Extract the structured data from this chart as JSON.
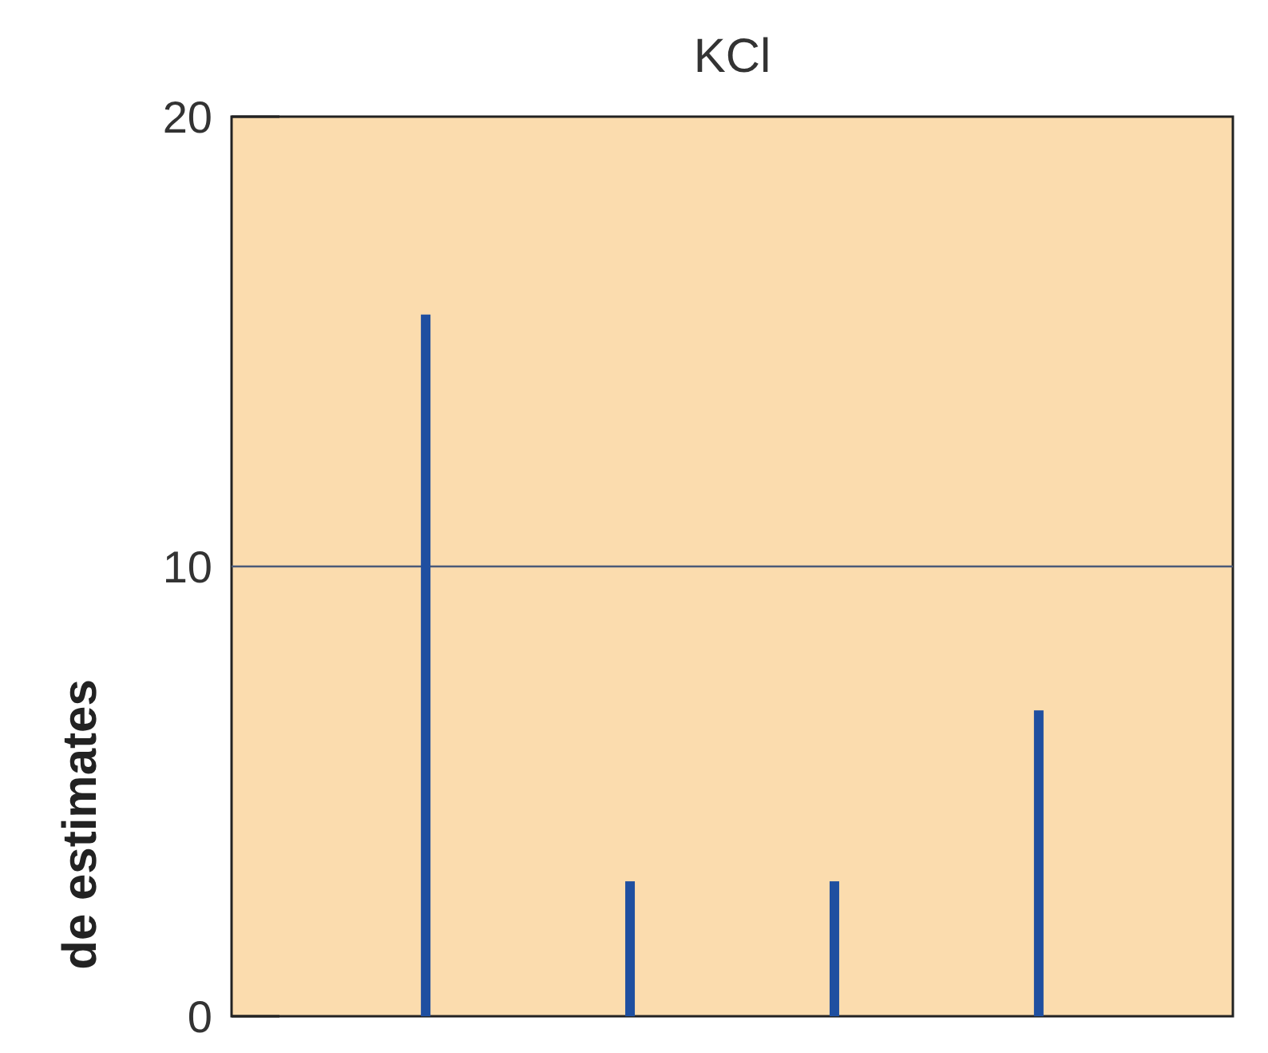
{
  "chart_data": {
    "type": "bar",
    "title": "KCl",
    "ylabel": "de estimates",
    "categories": [
      null,
      null,
      null,
      null
    ],
    "values": [
      15.6,
      3,
      3,
      6.8
    ],
    "color": "#1f4fa0",
    "ylim": [
      0,
      20
    ],
    "yticks": [
      0,
      10,
      20
    ],
    "tick_labels": "y",
    "ref_lines": [
      {
        "axis": "y",
        "value": 10,
        "color": "#4a5a78"
      }
    ]
  }
}
